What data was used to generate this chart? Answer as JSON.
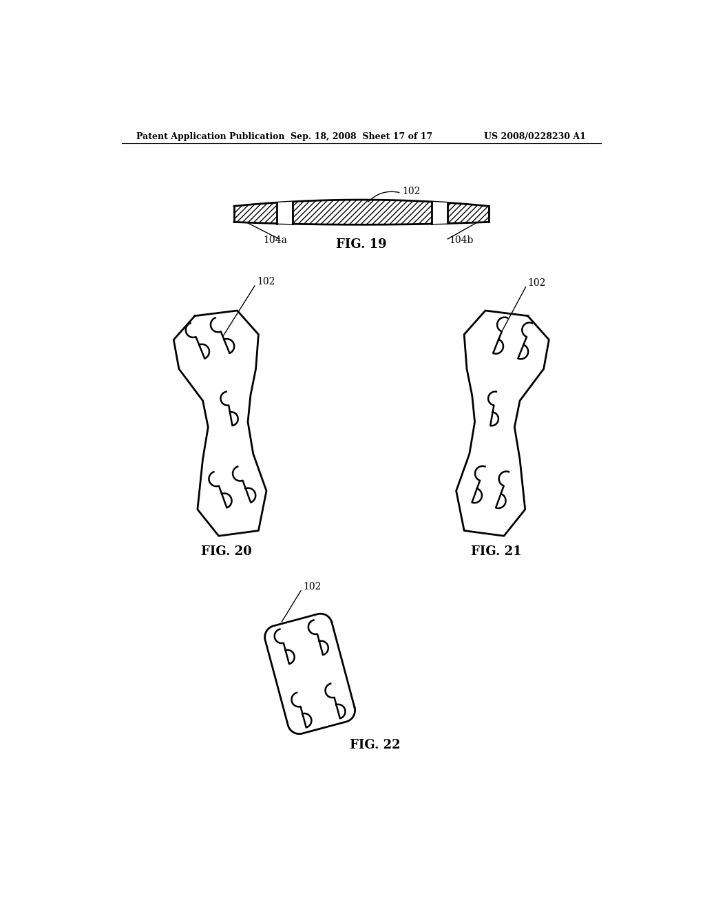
{
  "title_left": "Patent Application Publication",
  "title_center": "Sep. 18, 2008  Sheet 17 of 17",
  "title_right": "US 2008/0228230 A1",
  "fig19_label": "FIG. 19",
  "fig20_label": "FIG. 20",
  "fig21_label": "FIG. 21",
  "fig22_label": "FIG. 22",
  "label_102_fig19": "102",
  "label_104a": "104a",
  "label_104b": "104b",
  "label_102_fig20": "102",
  "label_102_fig21": "102",
  "label_102_fig22": "102",
  "bg_color": "#ffffff",
  "line_color": "#000000"
}
